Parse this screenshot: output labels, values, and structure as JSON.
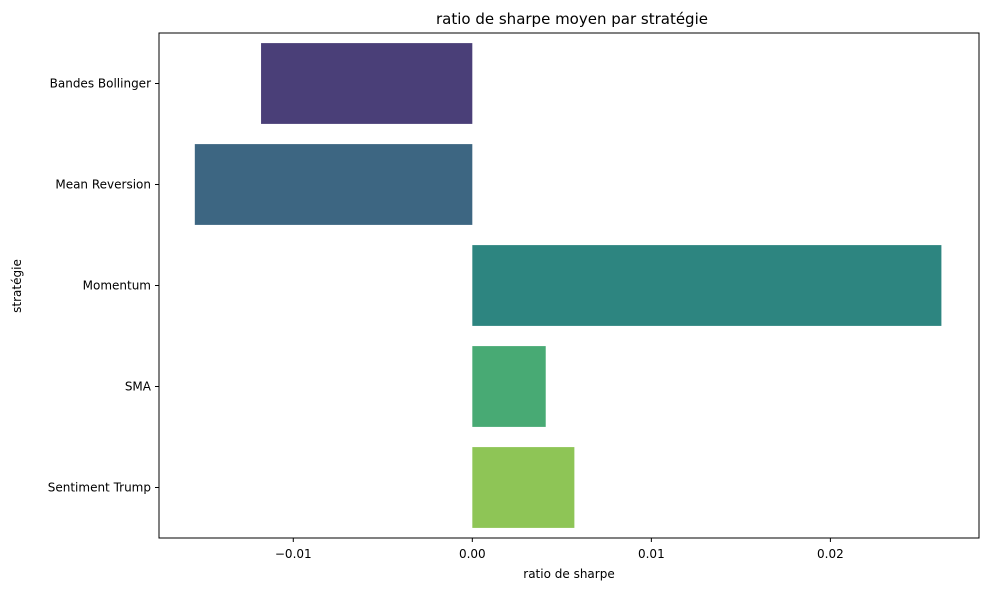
{
  "chart_data": {
    "type": "bar",
    "orientation": "horizontal",
    "title": "ratio de sharpe moyen par stratégie",
    "xlabel": "ratio de sharpe",
    "ylabel": "stratégie",
    "categories": [
      "Bandes Bollinger",
      "Mean Reversion",
      "Momentum",
      "SMA",
      "Sentiment Trump"
    ],
    "values": [
      -0.0118,
      -0.0155,
      0.0262,
      0.0041,
      0.0057
    ],
    "colors": [
      "#4a3f78",
      "#3d6682",
      "#2d8580",
      "#48aa74",
      "#8ec556"
    ],
    "xlim": [
      -0.0175,
      0.0283
    ],
    "xticks": [
      -0.01,
      0.0,
      0.01,
      0.02
    ],
    "xtick_labels": [
      "−0.01",
      "0.00",
      "0.01",
      "0.02"
    ],
    "grid": false,
    "legend": false
  }
}
